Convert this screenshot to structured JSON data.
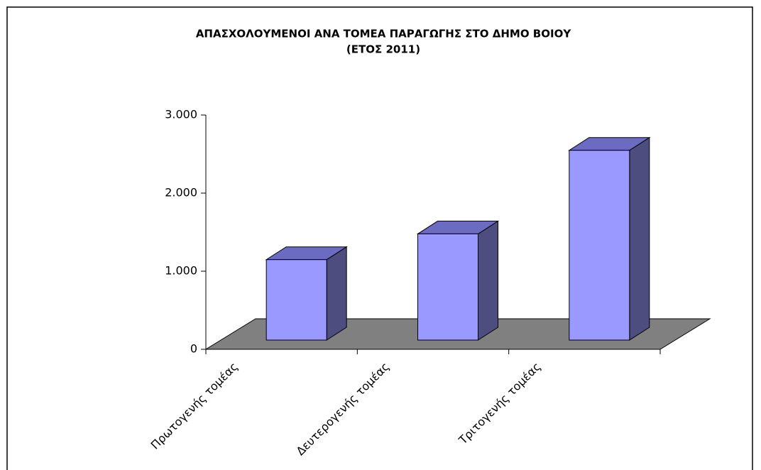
{
  "chart_data": {
    "type": "bar3d",
    "title": [
      "ΑΠΑΣΧΟΛΟΥΜΕΝΟΙ ΑΝΑ ΤΟΜΕΑ ΠΑΡΑΓΩΓΗΣ ΣΤΟ ΔΗΜΟ ΒΟΙΟΥ",
      "(ΕΤΟΣ 2011)"
    ],
    "categories": [
      "Πρωτογενής τομέας",
      "Δευτερογενής τομέας",
      "Τριτογενής τομέας"
    ],
    "values": [
      1030,
      1360,
      2430
    ],
    "color": "#9999ff",
    "ylim": [
      0,
      3000
    ],
    "yticks": [
      0,
      {
        "value": 1000,
        "label": "1.000"
      },
      {
        "value": 2000,
        "label": "2.000"
      },
      {
        "value": 3000,
        "label": "3.000"
      }
    ]
  }
}
